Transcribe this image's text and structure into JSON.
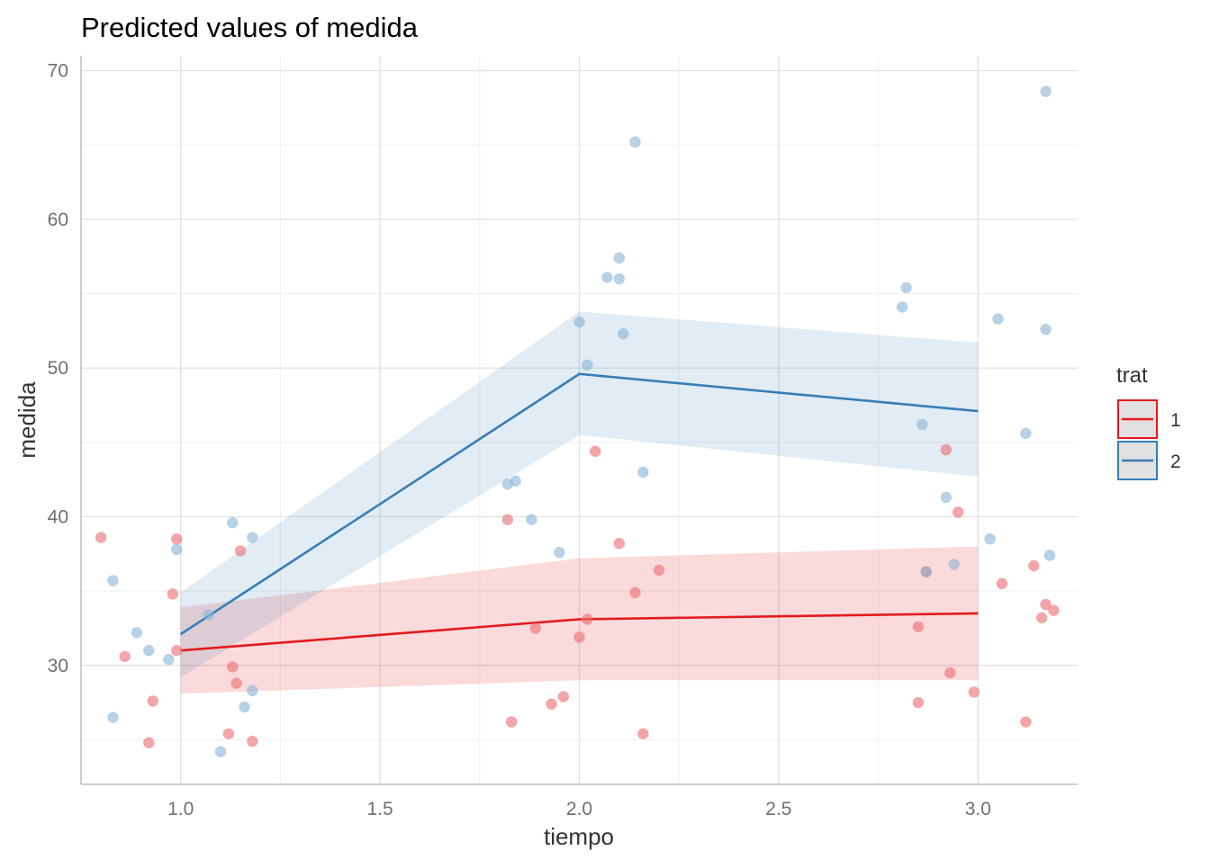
{
  "chart_data": {
    "type": "line",
    "title": "Predicted values of medida",
    "xlabel": "tiempo",
    "ylabel": "medida",
    "xlim": [
      0.75,
      3.25
    ],
    "ylim": [
      22.0,
      71.0
    ],
    "x_ticks": [
      1.0,
      1.5,
      2.0,
      2.5,
      3.0
    ],
    "x_tick_labels": [
      "1.0",
      "1.5",
      "2.0",
      "2.5",
      "3.0"
    ],
    "y_ticks": [
      30,
      40,
      50,
      60,
      70
    ],
    "y_tick_labels": [
      "30",
      "40",
      "50",
      "60",
      "70"
    ],
    "grid": true,
    "legend": {
      "title": "trat",
      "position": "right",
      "entries": [
        {
          "label": "1",
          "color": "#E41A1C"
        },
        {
          "label": "2",
          "color": "#377EB8"
        }
      ]
    },
    "series": [
      {
        "name": "1",
        "color": "#E41A1C",
        "x": [
          1,
          2,
          3
        ],
        "values": [
          31.0,
          33.1,
          33.5
        ],
        "ci_low": [
          28.1,
          29.0,
          29.0
        ],
        "ci_high": [
          33.9,
          37.2,
          38.0
        ],
        "points": [
          [
            0.8,
            38.6
          ],
          [
            0.86,
            30.6
          ],
          [
            0.92,
            24.8
          ],
          [
            0.93,
            27.6
          ],
          [
            0.98,
            34.8
          ],
          [
            0.99,
            31.0
          ],
          [
            0.99,
            38.5
          ],
          [
            1.12,
            25.4
          ],
          [
            1.13,
            29.9
          ],
          [
            1.14,
            28.8
          ],
          [
            1.15,
            37.7
          ],
          [
            1.18,
            24.9
          ],
          [
            1.82,
            39.8
          ],
          [
            1.83,
            26.2
          ],
          [
            1.89,
            32.5
          ],
          [
            1.93,
            27.4
          ],
          [
            1.96,
            27.9
          ],
          [
            2.0,
            31.9
          ],
          [
            2.02,
            33.1
          ],
          [
            2.04,
            44.4
          ],
          [
            2.1,
            38.2
          ],
          [
            2.14,
            34.9
          ],
          [
            2.16,
            25.4
          ],
          [
            2.2,
            36.4
          ],
          [
            2.85,
            32.6
          ],
          [
            2.85,
            27.5
          ],
          [
            2.87,
            36.3
          ],
          [
            2.92,
            44.5
          ],
          [
            2.93,
            29.5
          ],
          [
            2.95,
            40.3
          ],
          [
            2.99,
            28.2
          ],
          [
            3.06,
            35.5
          ],
          [
            3.12,
            26.2
          ],
          [
            3.14,
            36.7
          ],
          [
            3.16,
            33.2
          ],
          [
            3.17,
            34.1
          ],
          [
            3.19,
            33.7
          ]
        ]
      },
      {
        "name": "2",
        "color": "#377EB8",
        "x": [
          1,
          2,
          3
        ],
        "values": [
          32.1,
          49.6,
          47.1
        ],
        "ci_low": [
          29.2,
          45.5,
          42.7
        ],
        "ci_high": [
          34.9,
          53.8,
          51.7
        ],
        "points": [
          [
            0.83,
            35.7
          ],
          [
            0.83,
            26.5
          ],
          [
            0.89,
            32.2
          ],
          [
            0.92,
            31.0
          ],
          [
            0.97,
            30.4
          ],
          [
            0.99,
            37.8
          ],
          [
            1.07,
            33.4
          ],
          [
            1.1,
            24.2
          ],
          [
            1.13,
            39.6
          ],
          [
            1.16,
            27.2
          ],
          [
            1.18,
            28.3
          ],
          [
            1.18,
            38.6
          ],
          [
            1.82,
            42.2
          ],
          [
            1.84,
            42.4
          ],
          [
            1.88,
            39.8
          ],
          [
            1.95,
            37.6
          ],
          [
            2.0,
            53.1
          ],
          [
            2.02,
            50.2
          ],
          [
            2.07,
            56.1
          ],
          [
            2.1,
            57.4
          ],
          [
            2.1,
            56.0
          ],
          [
            2.11,
            52.3
          ],
          [
            2.14,
            65.2
          ],
          [
            2.16,
            43.0
          ],
          [
            2.81,
            54.1
          ],
          [
            2.82,
            55.4
          ],
          [
            2.86,
            46.2
          ],
          [
            2.87,
            36.3
          ],
          [
            2.92,
            41.3
          ],
          [
            2.94,
            36.8
          ],
          [
            3.03,
            38.5
          ],
          [
            3.05,
            53.3
          ],
          [
            3.12,
            45.6
          ],
          [
            3.17,
            68.6
          ],
          [
            3.17,
            52.6
          ],
          [
            3.18,
            37.4
          ]
        ]
      }
    ]
  }
}
